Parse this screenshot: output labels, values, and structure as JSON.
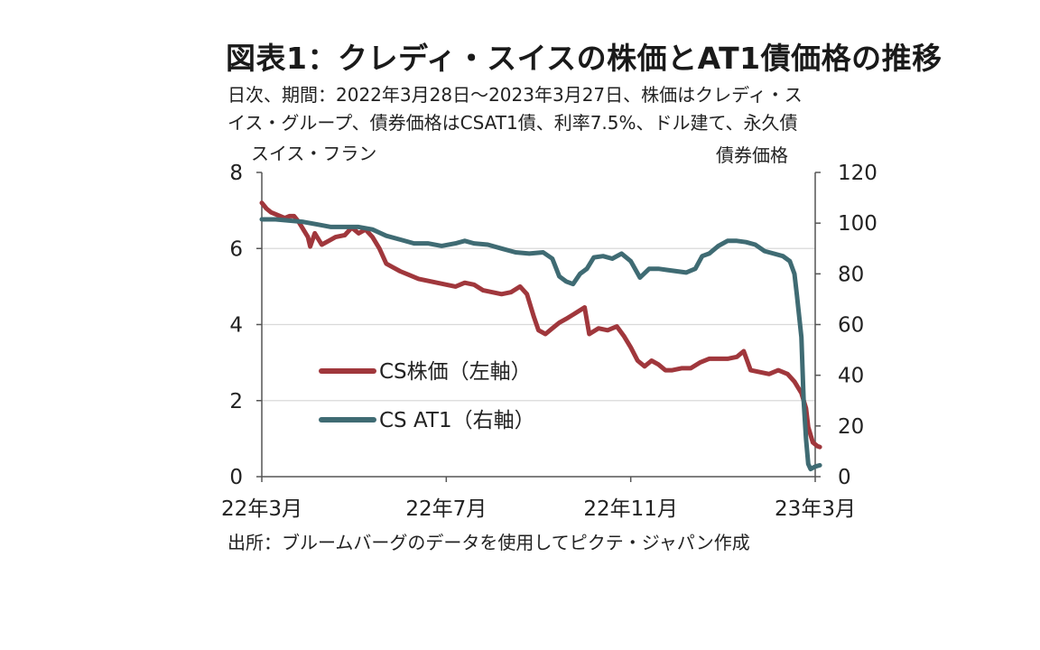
{
  "title": "図表1：クレディ・スイスの株価とAT1債価格の推移",
  "subtitle_lines": [
    "日次、期間：2022年3月28日～2023年3月27日、株価はクレディ・ス",
    "イス・グループ、債券価格はCSAT1債、利率7.5%、ドル建て、永久債"
  ],
  "source": "出所：ブルームバーグのデータを使用してピクテ・ジャパン作成",
  "chart_data": {
    "type": "line",
    "title": "図表1：クレディ・スイスの株価とAT1債価格の推移",
    "x_tick_labels": [
      "22年3月",
      "22年7月",
      "22年11月",
      "23年3月"
    ],
    "x_ticks": [
      0,
      4,
      8,
      12
    ],
    "xlim": [
      0,
      12
    ],
    "y_left_label": "スイス・フラン",
    "y_left_lim": [
      0,
      8
    ],
    "y_left_ticks": [
      "0",
      "2",
      "4",
      "6",
      "8"
    ],
    "y_right_label": "債券価格",
    "y_right_lim": [
      0,
      120
    ],
    "y_right_ticks": [
      "0",
      "20",
      "40",
      "60",
      "80",
      "100",
      "120"
    ],
    "grid": "horizontal",
    "legend_position": "left-center",
    "series": [
      {
        "name": "CS株価（左軸）",
        "axis": "left",
        "color": "#a0373c",
        "points": [
          [
            0.0,
            7.2
          ],
          [
            0.1,
            7.05
          ],
          [
            0.2,
            6.95
          ],
          [
            0.3,
            6.9
          ],
          [
            0.4,
            6.85
          ],
          [
            0.5,
            6.8
          ],
          [
            0.6,
            6.85
          ],
          [
            0.7,
            6.85
          ],
          [
            0.8,
            6.7
          ],
          [
            0.9,
            6.5
          ],
          [
            1.0,
            6.3
          ],
          [
            1.05,
            6.05
          ],
          [
            1.15,
            6.4
          ],
          [
            1.3,
            6.1
          ],
          [
            1.45,
            6.2
          ],
          [
            1.6,
            6.3
          ],
          [
            1.8,
            6.35
          ],
          [
            1.95,
            6.55
          ],
          [
            2.1,
            6.4
          ],
          [
            2.25,
            6.5
          ],
          [
            2.4,
            6.3
          ],
          [
            2.55,
            6.0
          ],
          [
            2.7,
            5.6
          ],
          [
            2.85,
            5.5
          ],
          [
            3.0,
            5.4
          ],
          [
            3.2,
            5.3
          ],
          [
            3.4,
            5.2
          ],
          [
            3.6,
            5.15
          ],
          [
            3.8,
            5.1
          ],
          [
            4.0,
            5.05
          ],
          [
            4.2,
            5.0
          ],
          [
            4.4,
            5.1
          ],
          [
            4.6,
            5.05
          ],
          [
            4.8,
            4.9
          ],
          [
            5.0,
            4.85
          ],
          [
            5.2,
            4.8
          ],
          [
            5.4,
            4.85
          ],
          [
            5.6,
            5.0
          ],
          [
            5.75,
            4.8
          ],
          [
            5.9,
            4.2
          ],
          [
            6.0,
            3.85
          ],
          [
            6.15,
            3.75
          ],
          [
            6.3,
            3.9
          ],
          [
            6.45,
            4.05
          ],
          [
            6.6,
            4.15
          ],
          [
            6.8,
            4.3
          ],
          [
            7.0,
            4.45
          ],
          [
            7.1,
            3.75
          ],
          [
            7.3,
            3.9
          ],
          [
            7.5,
            3.85
          ],
          [
            7.7,
            3.95
          ],
          [
            7.85,
            3.7
          ],
          [
            8.0,
            3.4
          ],
          [
            8.15,
            3.05
          ],
          [
            8.3,
            2.9
          ],
          [
            8.45,
            3.05
          ],
          [
            8.6,
            2.95
          ],
          [
            8.75,
            2.8
          ],
          [
            8.9,
            2.8
          ],
          [
            9.1,
            2.85
          ],
          [
            9.3,
            2.85
          ],
          [
            9.5,
            3.0
          ],
          [
            9.7,
            3.1
          ],
          [
            9.9,
            3.1
          ],
          [
            10.1,
            3.1
          ],
          [
            10.3,
            3.15
          ],
          [
            10.45,
            3.3
          ],
          [
            10.6,
            2.8
          ],
          [
            10.8,
            2.75
          ],
          [
            11.0,
            2.7
          ],
          [
            11.2,
            2.8
          ],
          [
            11.4,
            2.7
          ],
          [
            11.55,
            2.5
          ],
          [
            11.7,
            2.2
          ],
          [
            11.8,
            1.8
          ],
          [
            11.85,
            1.3
          ],
          [
            11.95,
            0.9
          ],
          [
            12.05,
            0.8
          ],
          [
            12.1,
            0.78
          ]
        ]
      },
      {
        "name": "CS AT1（右軸）",
        "axis": "right",
        "color": "#3f6b73",
        "points": [
          [
            0.0,
            101.5
          ],
          [
            0.3,
            101.5
          ],
          [
            0.6,
            101
          ],
          [
            0.9,
            100.5
          ],
          [
            1.2,
            99.5
          ],
          [
            1.5,
            98.5
          ],
          [
            1.8,
            98.5
          ],
          [
            2.1,
            98.5
          ],
          [
            2.4,
            97.5
          ],
          [
            2.7,
            95
          ],
          [
            3.0,
            93.5
          ],
          [
            3.3,
            92
          ],
          [
            3.6,
            92
          ],
          [
            3.9,
            91
          ],
          [
            4.2,
            92
          ],
          [
            4.4,
            93
          ],
          [
            4.6,
            92
          ],
          [
            4.9,
            91.5
          ],
          [
            5.2,
            90
          ],
          [
            5.5,
            88.5
          ],
          [
            5.8,
            88
          ],
          [
            6.1,
            88.5
          ],
          [
            6.3,
            86
          ],
          [
            6.45,
            79
          ],
          [
            6.6,
            77
          ],
          [
            6.75,
            76
          ],
          [
            6.9,
            80
          ],
          [
            7.05,
            82
          ],
          [
            7.2,
            86.5
          ],
          [
            7.4,
            87
          ],
          [
            7.6,
            86
          ],
          [
            7.8,
            88
          ],
          [
            8.0,
            85
          ],
          [
            8.2,
            78.5
          ],
          [
            8.4,
            82
          ],
          [
            8.6,
            82
          ],
          [
            8.8,
            81.5
          ],
          [
            9.0,
            81
          ],
          [
            9.2,
            80.5
          ],
          [
            9.4,
            82
          ],
          [
            9.55,
            87
          ],
          [
            9.7,
            88
          ],
          [
            9.9,
            91
          ],
          [
            10.1,
            93
          ],
          [
            10.3,
            93
          ],
          [
            10.5,
            92.5
          ],
          [
            10.7,
            91.5
          ],
          [
            10.9,
            89
          ],
          [
            11.1,
            88
          ],
          [
            11.3,
            87
          ],
          [
            11.45,
            85
          ],
          [
            11.55,
            80
          ],
          [
            11.6,
            72
          ],
          [
            11.7,
            55
          ],
          [
            11.75,
            30
          ],
          [
            11.8,
            15
          ],
          [
            11.85,
            5
          ],
          [
            11.9,
            3
          ],
          [
            12.0,
            4
          ],
          [
            12.1,
            4.5
          ]
        ]
      }
    ]
  }
}
